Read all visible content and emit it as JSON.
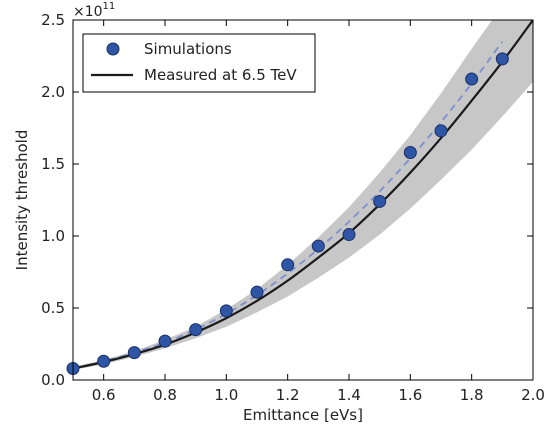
{
  "chart_data": {
    "type": "scatter",
    "xlabel": "Emittance [eVs]",
    "ylabel": "Intensity threshold",
    "y_multiplier_label": "×10",
    "y_multiplier_exponent": "11",
    "xlim": [
      0.5,
      2.0
    ],
    "ylim": [
      0.0,
      2.5
    ],
    "x_ticks": [
      0.6,
      0.8,
      1.0,
      1.2,
      1.4,
      1.6,
      1.8,
      2.0
    ],
    "x_tick_labels": [
      "0.6",
      "0.8",
      "1.0",
      "1.2",
      "1.4",
      "1.6",
      "1.8",
      "2.0"
    ],
    "y_ticks": [
      0.0,
      0.5,
      1.0,
      1.5,
      2.0,
      2.5
    ],
    "y_tick_labels": [
      "0.0",
      "0.5",
      "1.0",
      "1.5",
      "2.0",
      "2.5"
    ],
    "grid": false,
    "legend_position": "top-left",
    "series": [
      {
        "name": "Simulations",
        "kind": "markers",
        "color": "#2f56a6",
        "x": [
          0.5,
          0.6,
          0.7,
          0.8,
          0.9,
          1.0,
          1.1,
          1.2,
          1.3,
          1.4,
          1.5,
          1.6,
          1.7,
          1.8,
          1.9
        ],
        "y": [
          0.08,
          0.13,
          0.19,
          0.27,
          0.35,
          0.48,
          0.61,
          0.8,
          0.93,
          1.01,
          1.24,
          1.58,
          1.73,
          2.09,
          2.23
        ]
      },
      {
        "name": "Measured at 6.5 TeV",
        "kind": "line",
        "color": "#1a1a1a",
        "x": [
          0.5,
          0.6,
          0.7,
          0.8,
          0.9,
          1.0,
          1.1,
          1.2,
          1.3,
          1.4,
          1.5,
          1.6,
          1.7,
          1.8,
          1.9,
          2.0
        ],
        "y": [
          0.08,
          0.125,
          0.18,
          0.245,
          0.33,
          0.43,
          0.55,
          0.69,
          0.85,
          1.02,
          1.22,
          1.44,
          1.68,
          1.94,
          2.21,
          2.5
        ],
        "band_lower": [
          0.07,
          0.11,
          0.16,
          0.22,
          0.29,
          0.37,
          0.47,
          0.58,
          0.71,
          0.85,
          1.01,
          1.19,
          1.39,
          1.6,
          1.83,
          2.07
        ],
        "band_upper": [
          0.09,
          0.14,
          0.2,
          0.28,
          0.37,
          0.49,
          0.63,
          0.8,
          0.99,
          1.2,
          1.44,
          1.7,
          1.99,
          2.3,
          2.6,
          2.95
        ],
        "band_color": "#bdbdbd"
      },
      {
        "kind": "dashed-line",
        "color": "#7b8fcf",
        "x": [
          0.5,
          0.6,
          0.7,
          0.8,
          0.9,
          1.0,
          1.1,
          1.2,
          1.3,
          1.4,
          1.5,
          1.6,
          1.7,
          1.8,
          1.9
        ],
        "y": [
          0.08,
          0.13,
          0.19,
          0.26,
          0.35,
          0.46,
          0.59,
          0.74,
          0.91,
          1.1,
          1.31,
          1.54,
          1.79,
          2.06,
          2.35
        ]
      }
    ]
  }
}
